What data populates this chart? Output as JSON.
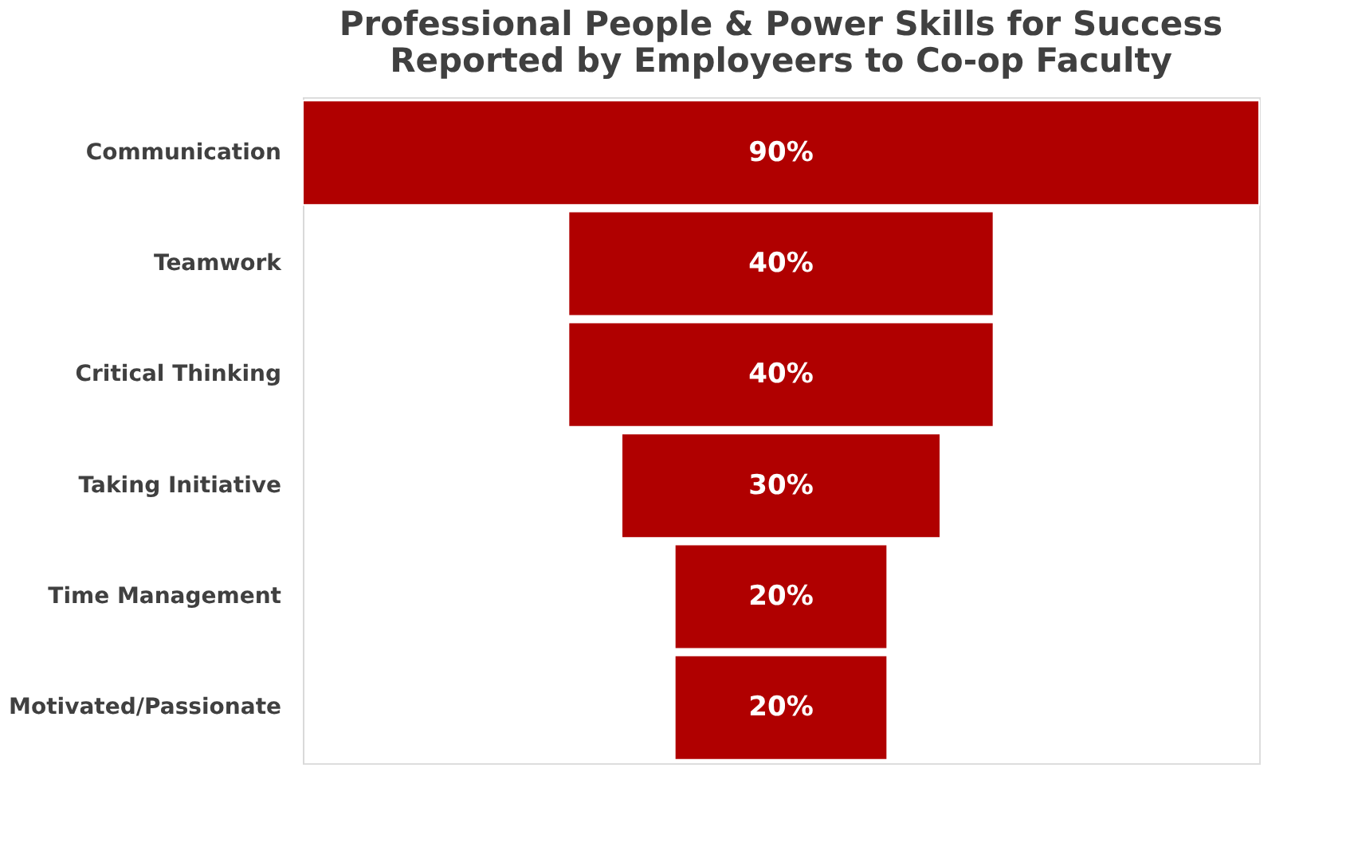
{
  "chart_data": {
    "type": "other",
    "title": [
      "Professional People & Power Skills for Success",
      "Reported by Employeers to Co-op Faculty"
    ],
    "categories": [
      "Communication",
      "Teamwork",
      "Critical Thinking",
      "Taking Initiative",
      "Time Management",
      "Motivated/Passionate"
    ],
    "values": [
      90,
      40,
      40,
      30,
      20,
      20
    ],
    "value_labels": [
      "90%",
      "40%",
      "40%",
      "30%",
      "20%",
      "20%"
    ],
    "color": "#b00000"
  }
}
